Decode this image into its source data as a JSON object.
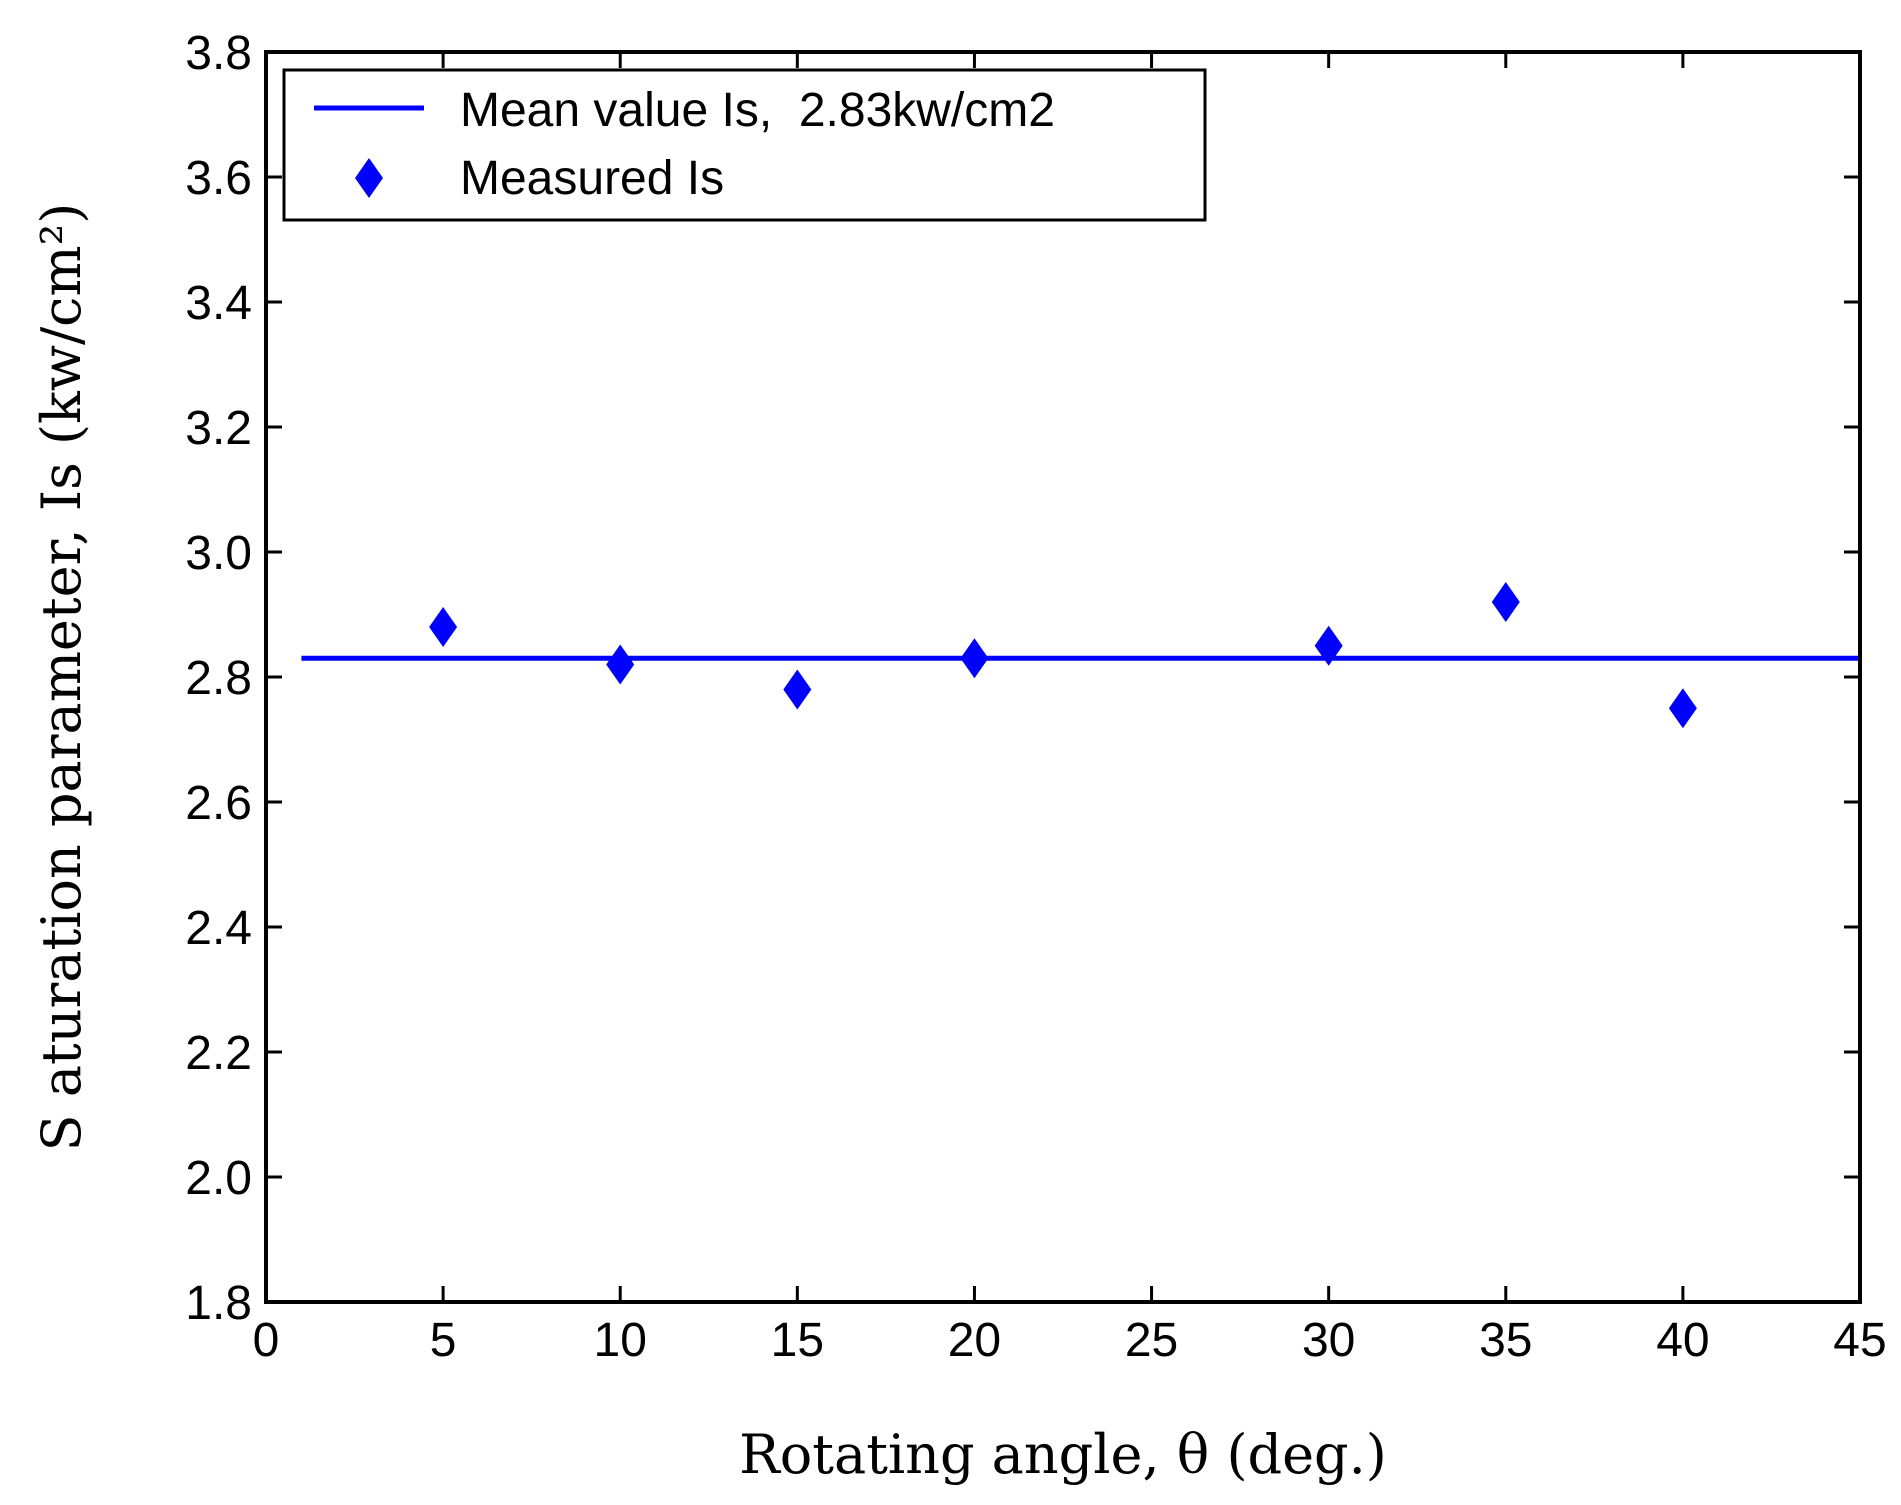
{
  "chart_data": {
    "type": "scatter",
    "title": "",
    "xlabel": "Rotating angle, θ (deg.)",
    "ylabel": "S aturation parameter, Is (kw/cm²)",
    "xlim": [
      0,
      45
    ],
    "ylim": [
      1.8,
      3.8
    ],
    "xticks": [
      0,
      5,
      10,
      15,
      20,
      25,
      30,
      35,
      40,
      45
    ],
    "yticks": [
      "1.8",
      "2.0",
      "2.2",
      "2.4",
      "2.6",
      "2.8",
      "3.0",
      "3.2",
      "3.4",
      "3.6",
      "3.8"
    ],
    "grid": false,
    "legend_position": "top-left",
    "series": [
      {
        "name": "Mean value Is,  2.83kw/cm2",
        "kind": "line",
        "color": "#0000ff",
        "x": [
          1,
          45
        ],
        "y": [
          2.83,
          2.83
        ]
      },
      {
        "name": "Measured Is",
        "kind": "scatter",
        "marker": "diamond",
        "color": "#0000ff",
        "x": [
          5,
          10,
          15,
          20,
          30,
          35,
          40
        ],
        "y": [
          2.88,
          2.82,
          2.78,
          2.83,
          2.85,
          2.92,
          2.75
        ]
      }
    ]
  }
}
